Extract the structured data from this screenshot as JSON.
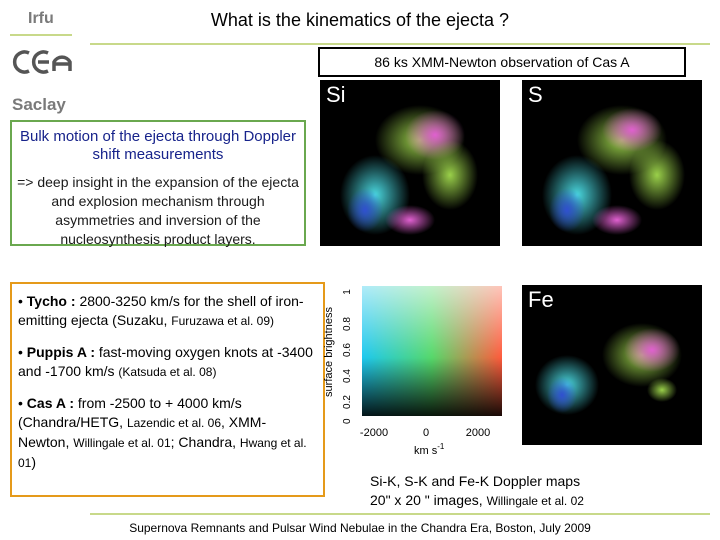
{
  "header": {
    "org": "Irfu",
    "lab": "Saclay",
    "title": "What is the kinematics of the ejecta ?"
  },
  "observation": {
    "label": "86 ks XMM-Newton observation of Cas A"
  },
  "green_box": {
    "heading": "Bulk motion of the ejecta through Doppler shift measurements",
    "body": "=> deep insight in the expansion of the ejecta and explosion mechanism through asymmetries and inversion of the nucleosynthesis product layers."
  },
  "bullets": {
    "tycho": {
      "name": "Tycho :",
      "text": "2800-3250 km/s for the shell of iron-emitting ejecta (Suzaku,",
      "ref": "Furuzawa et al. 09)"
    },
    "puppis": {
      "name": "Puppis A :",
      "text": "fast-moving oxygen knots at -3400 and -1700 km/s",
      "ref": "(Katsuda et al. 08)"
    },
    "casa": {
      "name": "Cas A :",
      "text1": "from -2500 to + 4000 km/s (Chandra/HETG,",
      "ref1": "Lazendic et al. 06",
      "text2": ", XMM-Newton,",
      "ref2": "Willingale et al. 01",
      "text3": "; Chandra,",
      "ref3": "Hwang et al. 01",
      "text4": ")"
    }
  },
  "maps": {
    "si_label": "Si",
    "s_label": "S",
    "fe_label": "Fe"
  },
  "colorscale": {
    "ylabel": "surface brightness",
    "xlabel": "km s",
    "xlabel_sup": "-1",
    "xticks": [
      "-2000",
      "0",
      "2000"
    ],
    "yticks": [
      "0",
      "0.2",
      "0.4",
      "0.6",
      "0.8",
      "1"
    ]
  },
  "caption": {
    "line1": "Si-K, S-K and Fe-K Doppler maps",
    "line2": "20\" x 20 \" images,",
    "ref": "Willingale et al. 02"
  },
  "footer": {
    "text": "Supernova Remnants and Pulsar Wind Nebulae in the Chandra Era, Boston, July 2009"
  }
}
